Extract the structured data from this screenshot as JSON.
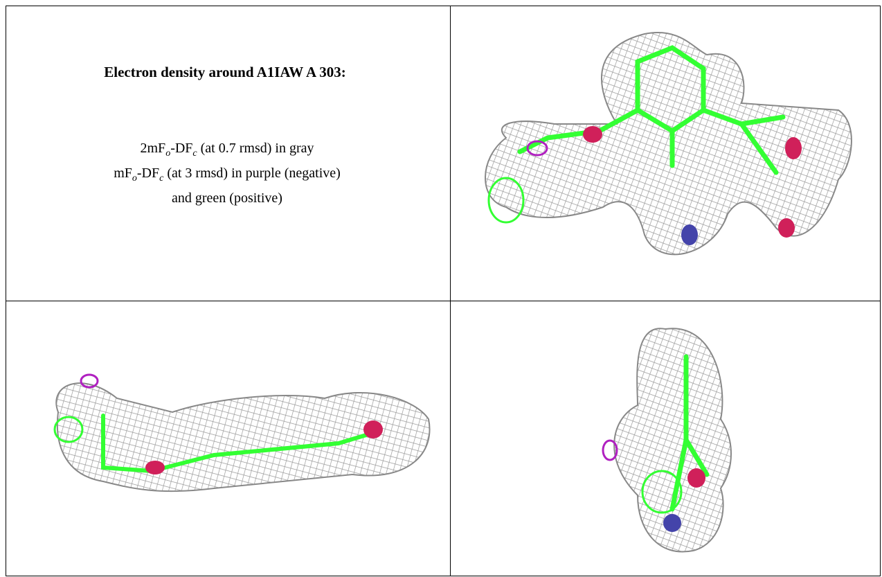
{
  "caption": {
    "title": "Electron density around A1IAW A 303:",
    "lines": [
      [
        {
          "text": "2mF"
        },
        {
          "sub": "o"
        },
        {
          "text": "-DF"
        },
        {
          "sub": "c"
        },
        {
          "text": " (at 0.7 rmsd) in gray"
        }
      ],
      [
        {
          "text": "mF"
        },
        {
          "sub": "o"
        },
        {
          "text": "-DF"
        },
        {
          "sub": "c"
        },
        {
          "text": " (at 3 rmsd) in purple (negative)"
        }
      ],
      [
        {
          "text": "and green (positive)"
        }
      ]
    ]
  }
}
